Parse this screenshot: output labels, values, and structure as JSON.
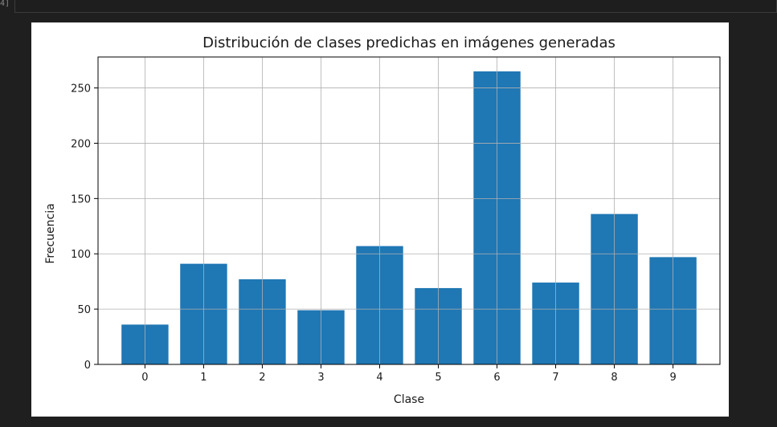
{
  "cell": {
    "prompt_fragment": "4]"
  },
  "chart_data": {
    "type": "bar",
    "title": "Distribución de clases predichas en imágenes generadas",
    "xlabel": "Clase",
    "ylabel": "Frecuencia",
    "categories": [
      "0",
      "1",
      "2",
      "3",
      "4",
      "5",
      "6",
      "7",
      "8",
      "9"
    ],
    "values": [
      36,
      91,
      77,
      49,
      107,
      69,
      265,
      74,
      136,
      97
    ],
    "ylim": [
      0,
      278
    ],
    "yticks": [
      0,
      50,
      100,
      150,
      200,
      250
    ],
    "grid": true,
    "bar_color": "#1f77b4",
    "grid_color": "#b0b0b0"
  }
}
